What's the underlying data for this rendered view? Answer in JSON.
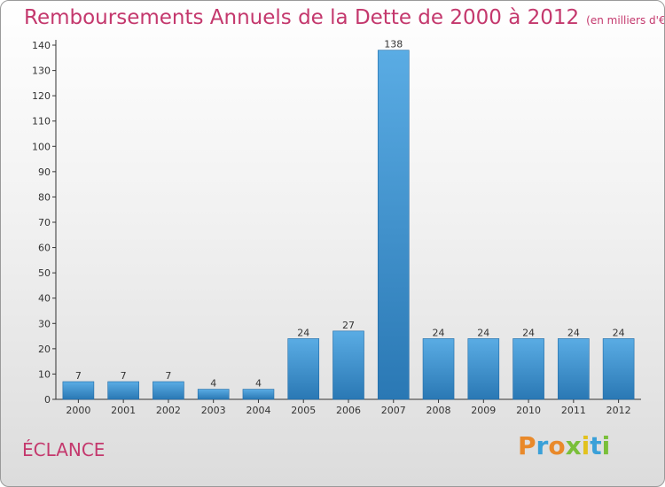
{
  "header": {
    "title": "Remboursements Annuels de la Dette de 2000 à 2012",
    "unit": "(en milliers d'€)"
  },
  "place_label": "ÉCLANCE",
  "brand": {
    "name": "Proxiti",
    "letters": [
      {
        "ch": "P",
        "color": "#e9892a"
      },
      {
        "ch": "r",
        "color": "#3aa0d8"
      },
      {
        "ch": "o",
        "color": "#e9892a"
      },
      {
        "ch": "x",
        "color": "#7abf3a"
      },
      {
        "ch": "i",
        "color": "#e2c21e"
      },
      {
        "ch": "t",
        "color": "#3aa0d8"
      },
      {
        "ch": "i",
        "color": "#7abf3a"
      }
    ]
  },
  "chart_data": {
    "type": "bar",
    "categories": [
      "2000",
      "2001",
      "2002",
      "2003",
      "2004",
      "2005",
      "2006",
      "2007",
      "2008",
      "2009",
      "2010",
      "2011",
      "2012"
    ],
    "values": [
      7,
      7,
      7,
      4,
      4,
      24,
      27,
      138,
      24,
      24,
      24,
      24,
      24
    ],
    "title": "Remboursements Annuels de la Dette de 2000 à 2012",
    "ylim": [
      0,
      140
    ],
    "yticks": [
      0,
      10,
      20,
      30,
      40,
      50,
      60,
      70,
      80,
      90,
      100,
      110,
      120,
      130,
      140
    ],
    "grid": false,
    "data_labels": true,
    "colors": {
      "bar_light": "#5aace4",
      "bar_dark": "#2a78b4",
      "bar_edge": "#1f6aa6",
      "axis": "#333333",
      "title": "#c4386d"
    }
  }
}
